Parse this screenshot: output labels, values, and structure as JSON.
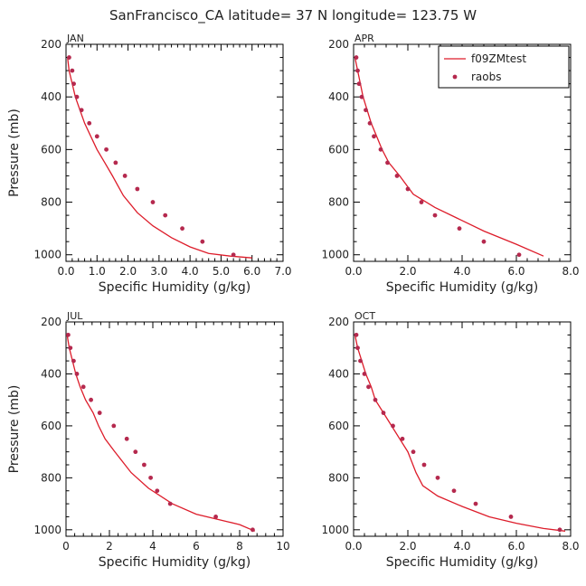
{
  "title": "SanFrancisco_CA  latitude= 37 N longitude= 123.75 W",
  "colors": {
    "model": "#dd1c2a",
    "obs": "#b5294e"
  },
  "legend": {
    "placement": "top-right of APR panel",
    "entries": [
      "f09ZMtest",
      "raobs"
    ]
  },
  "chart_data": [
    {
      "type": "line",
      "panel": "JAN",
      "xlabel": "Specific Humidity (g/kg)",
      "ylabel": "Pressure (mb)",
      "xlim": [
        0,
        7
      ],
      "ylim": [
        1025,
        200
      ],
      "x_ticks": [
        0,
        1,
        2,
        3,
        4,
        5,
        6,
        7
      ],
      "x_tick_labels": [
        "0.0",
        "1.0",
        "2.0",
        "3.0",
        "4.0",
        "5.0",
        "6.0",
        "7.0"
      ],
      "y_ticks": [
        200,
        400,
        600,
        800,
        1000
      ],
      "y_tick_labels": [
        "200",
        "400",
        "600",
        "800",
        "1000"
      ],
      "series": [
        {
          "name": "f09ZMtest",
          "kind": "line",
          "points": [
            [
              0.05,
              250
            ],
            [
              0.1,
              300
            ],
            [
              0.2,
              350
            ],
            [
              0.3,
              400
            ],
            [
              0.45,
              450
            ],
            [
              0.6,
              500
            ],
            [
              0.8,
              550
            ],
            [
              1.0,
              600
            ],
            [
              1.25,
              650
            ],
            [
              1.5,
              700
            ],
            [
              1.85,
              775
            ],
            [
              2.3,
              840
            ],
            [
              2.8,
              890
            ],
            [
              3.4,
              935
            ],
            [
              4.0,
              970
            ],
            [
              4.6,
              995
            ],
            [
              5.3,
              1005
            ],
            [
              6.0,
              1012
            ]
          ]
        },
        {
          "name": "raobs",
          "kind": "scatter",
          "points": [
            [
              0.1,
              250
            ],
            [
              0.2,
              300
            ],
            [
              0.25,
              350
            ],
            [
              0.35,
              400
            ],
            [
              0.5,
              450
            ],
            [
              0.75,
              500
            ],
            [
              1.0,
              550
            ],
            [
              1.3,
              600
            ],
            [
              1.6,
              650
            ],
            [
              1.9,
              700
            ],
            [
              2.3,
              750
            ],
            [
              2.8,
              800
            ],
            [
              3.2,
              850
            ],
            [
              3.75,
              900
            ],
            [
              4.4,
              950
            ],
            [
              5.4,
              1000
            ]
          ]
        }
      ]
    },
    {
      "type": "line",
      "panel": "APR",
      "xlabel": "Specific Humidity (g/kg)",
      "ylabel": "",
      "xlim": [
        0,
        8
      ],
      "ylim": [
        1025,
        200
      ],
      "x_ticks": [
        0,
        2,
        4,
        6,
        8
      ],
      "x_tick_labels": [
        "0.0",
        "2.0",
        "4.0",
        "6.0",
        "8.0"
      ],
      "y_ticks": [
        200,
        400,
        600,
        800,
        1000
      ],
      "y_tick_labels": [
        "200",
        "400",
        "600",
        "800",
        "1000"
      ],
      "series": [
        {
          "name": "f09ZMtest",
          "kind": "line",
          "points": [
            [
              0.05,
              250
            ],
            [
              0.15,
              300
            ],
            [
              0.25,
              350
            ],
            [
              0.35,
              400
            ],
            [
              0.5,
              450
            ],
            [
              0.65,
              500
            ],
            [
              0.85,
              550
            ],
            [
              1.05,
              600
            ],
            [
              1.3,
              650
            ],
            [
              1.7,
              700
            ],
            [
              2.2,
              770
            ],
            [
              3.0,
              820
            ],
            [
              3.8,
              860
            ],
            [
              4.8,
              910
            ],
            [
              6.0,
              960
            ],
            [
              7.0,
              1005
            ]
          ]
        },
        {
          "name": "raobs",
          "kind": "scatter",
          "points": [
            [
              0.1,
              250
            ],
            [
              0.15,
              300
            ],
            [
              0.2,
              350
            ],
            [
              0.3,
              400
            ],
            [
              0.45,
              450
            ],
            [
              0.6,
              500
            ],
            [
              0.75,
              550
            ],
            [
              1.0,
              600
            ],
            [
              1.25,
              650
            ],
            [
              1.6,
              700
            ],
            [
              2.0,
              750
            ],
            [
              2.5,
              800
            ],
            [
              3.0,
              850
            ],
            [
              3.9,
              900
            ],
            [
              4.8,
              950
            ],
            [
              6.1,
              1000
            ]
          ]
        }
      ]
    },
    {
      "type": "line",
      "panel": "JUL",
      "xlabel": "Specific Humidity (g/kg)",
      "ylabel": "Pressure (mb)",
      "xlim": [
        0,
        10
      ],
      "ylim": [
        1025,
        200
      ],
      "x_ticks": [
        0,
        2,
        4,
        6,
        8,
        10
      ],
      "x_tick_labels": [
        "0",
        "2",
        "4",
        "6",
        "8",
        "10"
      ],
      "y_ticks": [
        200,
        400,
        600,
        800,
        1000
      ],
      "y_tick_labels": [
        "200",
        "400",
        "600",
        "800",
        "1000"
      ],
      "series": [
        {
          "name": "f09ZMtest",
          "kind": "line",
          "points": [
            [
              0.05,
              250
            ],
            [
              0.15,
              300
            ],
            [
              0.3,
              350
            ],
            [
              0.45,
              400
            ],
            [
              0.65,
              450
            ],
            [
              0.9,
              500
            ],
            [
              1.25,
              550
            ],
            [
              1.5,
              600
            ],
            [
              1.8,
              650
            ],
            [
              2.25,
              700
            ],
            [
              3.0,
              780
            ],
            [
              3.8,
              840
            ],
            [
              4.9,
              900
            ],
            [
              6.0,
              940
            ],
            [
              7.5,
              970
            ],
            [
              8.0,
              980
            ],
            [
              8.7,
              1005
            ]
          ]
        },
        {
          "name": "raobs",
          "kind": "scatter",
          "points": [
            [
              0.1,
              250
            ],
            [
              0.2,
              300
            ],
            [
              0.35,
              350
            ],
            [
              0.5,
              400
            ],
            [
              0.8,
              450
            ],
            [
              1.15,
              500
            ],
            [
              1.55,
              550
            ],
            [
              2.2,
              600
            ],
            [
              2.8,
              650
            ],
            [
              3.2,
              700
            ],
            [
              3.6,
              750
            ],
            [
              3.9,
              800
            ],
            [
              4.2,
              850
            ],
            [
              4.8,
              900
            ],
            [
              6.9,
              950
            ],
            [
              8.6,
              1000
            ]
          ]
        }
      ]
    },
    {
      "type": "line",
      "panel": "OCT",
      "xlabel": "Specific Humidity (g/kg)",
      "ylabel": "",
      "xlim": [
        0,
        8
      ],
      "ylim": [
        1025,
        200
      ],
      "x_ticks": [
        0,
        2,
        4,
        6,
        8
      ],
      "x_tick_labels": [
        "0.0",
        "2.0",
        "4.0",
        "6.0",
        "8.0"
      ],
      "y_ticks": [
        200,
        400,
        600,
        800,
        1000
      ],
      "y_tick_labels": [
        "200",
        "400",
        "600",
        "800",
        "1000"
      ],
      "series": [
        {
          "name": "f09ZMtest",
          "kind": "line",
          "points": [
            [
              0.05,
              250
            ],
            [
              0.15,
              300
            ],
            [
              0.3,
              350
            ],
            [
              0.45,
              400
            ],
            [
              0.65,
              450
            ],
            [
              0.8,
              500
            ],
            [
              1.1,
              550
            ],
            [
              1.4,
              600
            ],
            [
              1.7,
              650
            ],
            [
              2.0,
              700
            ],
            [
              2.3,
              780
            ],
            [
              2.55,
              830
            ],
            [
              3.1,
              870
            ],
            [
              4.0,
              910
            ],
            [
              5.0,
              950
            ],
            [
              6.0,
              975
            ],
            [
              7.0,
              995
            ],
            [
              7.8,
              1005
            ]
          ]
        },
        {
          "name": "raobs",
          "kind": "scatter",
          "points": [
            [
              0.1,
              250
            ],
            [
              0.15,
              300
            ],
            [
              0.25,
              350
            ],
            [
              0.4,
              400
            ],
            [
              0.55,
              450
            ],
            [
              0.8,
              500
            ],
            [
              1.1,
              550
            ],
            [
              1.45,
              600
            ],
            [
              1.8,
              650
            ],
            [
              2.2,
              700
            ],
            [
              2.6,
              750
            ],
            [
              3.1,
              800
            ],
            [
              3.7,
              850
            ],
            [
              4.5,
              900
            ],
            [
              5.8,
              950
            ],
            [
              7.6,
              1000
            ]
          ]
        }
      ]
    }
  ]
}
